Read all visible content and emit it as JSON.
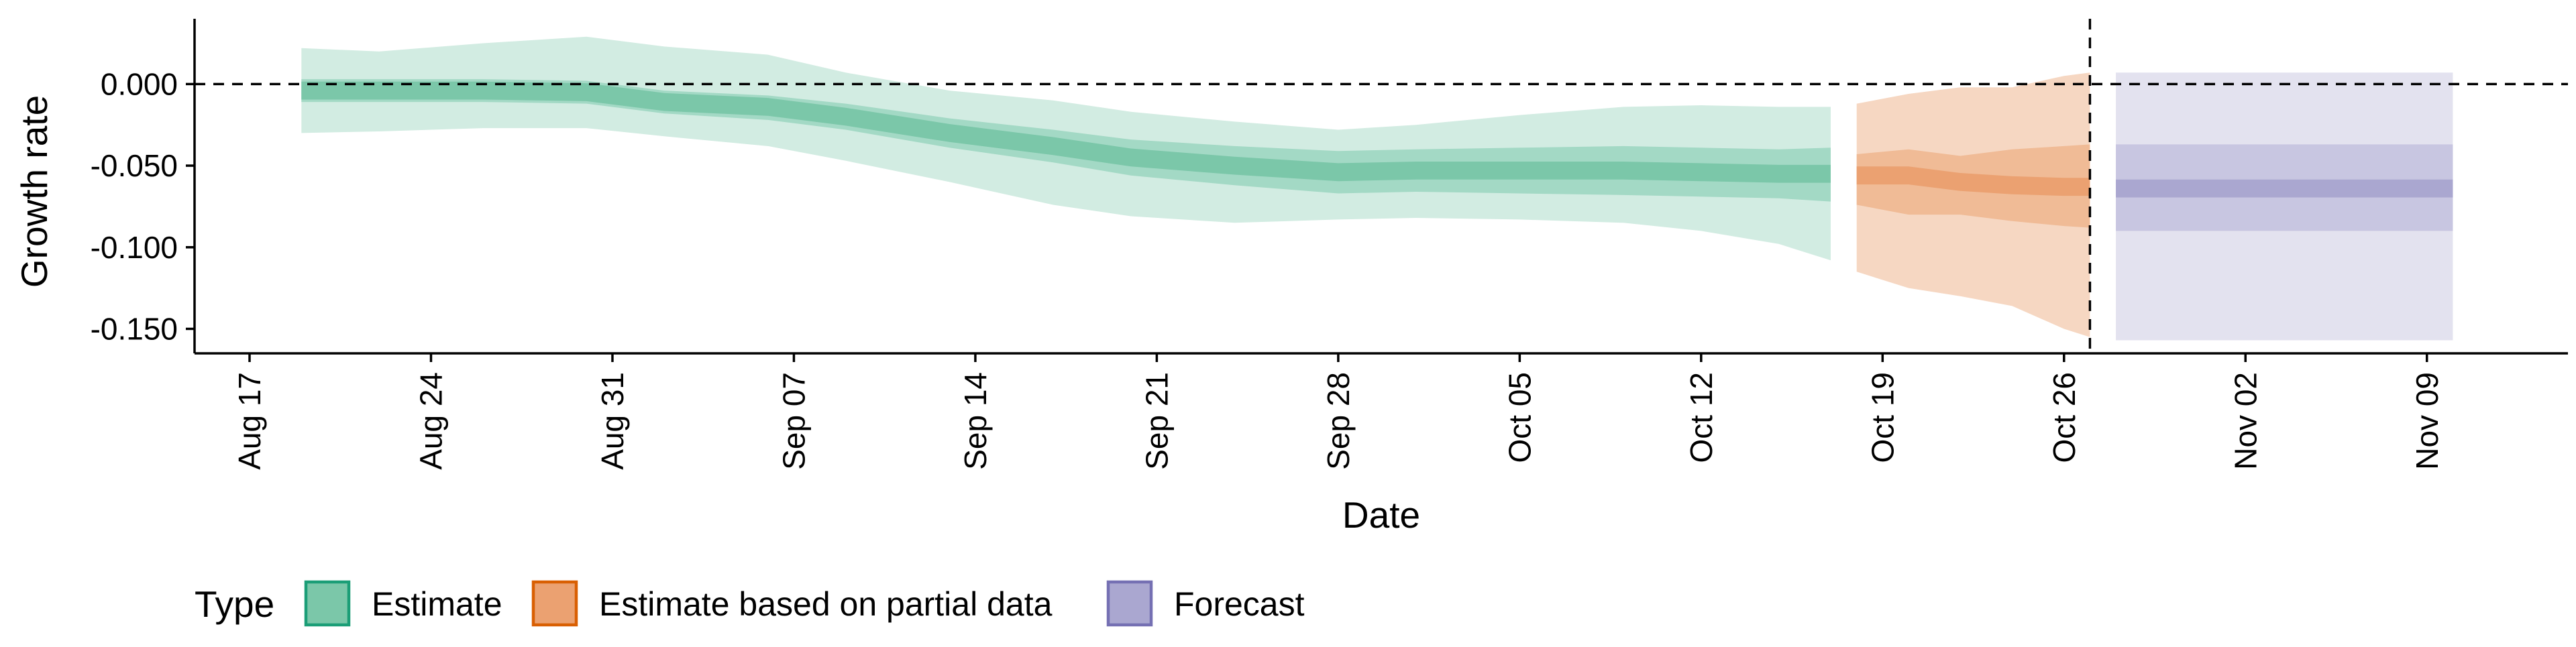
{
  "chart_data": {
    "type": "area",
    "title": "",
    "xlabel": "Date",
    "ylabel": "Growth rate",
    "x_ticks": [
      "Aug 17",
      "Aug 24",
      "Aug 31",
      "Sep 07",
      "Sep 14",
      "Sep 21",
      "Sep 28",
      "Oct 05",
      "Oct 12",
      "Oct 19",
      "Oct 26",
      "Nov 02",
      "Nov 09"
    ],
    "y_ticks": [
      "0.000",
      "-0.050",
      "-0.100",
      "-0.150"
    ],
    "ylim": [
      -0.165,
      0.04
    ],
    "grid": false,
    "reference_line_y": 0.0,
    "forecast_start_line": "Oct 27",
    "legend": {
      "title": "Type",
      "position": "bottom-left",
      "entries": [
        {
          "label": "Estimate",
          "fill": "#7bc7a9",
          "stroke": "#1b9e77"
        },
        {
          "label": "Estimate based on partial data",
          "fill": "#eba171",
          "stroke": "#d95f02"
        },
        {
          "label": "Forecast",
          "fill": "#aaa7d0",
          "stroke": "#7570b3"
        }
      ]
    },
    "series": [
      {
        "name": "Estimate",
        "colors": {
          "outer": "#d2ece2",
          "inner": "#a3d9c5",
          "center": "#7bc7a9"
        },
        "x": [
          "2020-08-19",
          "2020-08-22",
          "2020-08-26",
          "2020-08-30",
          "2020-09-02",
          "2020-09-06",
          "2020-09-09",
          "2020-09-13",
          "2020-09-17",
          "2020-09-20",
          "2020-09-24",
          "2020-09-28",
          "2020-10-01",
          "2020-10-05",
          "2020-10-09",
          "2020-10-12",
          "2020-10-15",
          "2020-10-17"
        ],
        "median": [
          -0.004,
          -0.004,
          -0.004,
          -0.005,
          -0.011,
          -0.014,
          -0.02,
          -0.03,
          -0.038,
          -0.045,
          -0.05,
          -0.054,
          -0.053,
          -0.053,
          -0.053,
          -0.054,
          -0.055,
          -0.055
        ],
        "lower_50": [
          -0.011,
          -0.011,
          -0.011,
          -0.012,
          -0.018,
          -0.022,
          -0.028,
          -0.039,
          -0.048,
          -0.056,
          -0.062,
          -0.067,
          -0.066,
          -0.067,
          -0.068,
          -0.069,
          -0.07,
          -0.072
        ],
        "upper_50": [
          0.003,
          0.003,
          0.003,
          0.002,
          -0.004,
          -0.007,
          -0.012,
          -0.021,
          -0.028,
          -0.034,
          -0.038,
          -0.041,
          -0.04,
          -0.039,
          -0.038,
          -0.039,
          -0.04,
          -0.039
        ],
        "lower_90": [
          -0.03,
          -0.029,
          -0.027,
          -0.027,
          -0.032,
          -0.038,
          -0.047,
          -0.06,
          -0.074,
          -0.081,
          -0.085,
          -0.083,
          -0.082,
          -0.083,
          -0.085,
          -0.09,
          -0.098,
          -0.108
        ],
        "upper_90": [
          0.022,
          0.02,
          0.025,
          0.029,
          0.023,
          0.018,
          0.007,
          -0.004,
          -0.01,
          -0.017,
          -0.023,
          -0.028,
          -0.025,
          -0.019,
          -0.014,
          -0.013,
          -0.014,
          -0.014
        ]
      },
      {
        "name": "Estimate based on partial data",
        "colors": {
          "outer": "#f6d7c2",
          "inner": "#f0bb96",
          "center": "#eba171"
        },
        "x": [
          "2020-10-18",
          "2020-10-20",
          "2020-10-22",
          "2020-10-24",
          "2020-10-26",
          "2020-10-27"
        ],
        "median": [
          -0.056,
          -0.056,
          -0.06,
          -0.062,
          -0.063,
          -0.063
        ],
        "lower_50": [
          -0.074,
          -0.08,
          -0.08,
          -0.084,
          -0.087,
          -0.088
        ],
        "upper_50": [
          -0.043,
          -0.04,
          -0.044,
          -0.04,
          -0.038,
          -0.037
        ],
        "lower_90": [
          -0.115,
          -0.125,
          -0.13,
          -0.136,
          -0.15,
          -0.155
        ],
        "upper_90": [
          -0.012,
          -0.006,
          -0.002,
          -0.002,
          0.005,
          0.007
        ]
      },
      {
        "name": "Forecast",
        "colors": {
          "outer": "#e3e2ef",
          "inner": "#c8c6e1",
          "center": "#aaa7d0"
        },
        "x": [
          "2020-10-28",
          "2020-11-10"
        ],
        "median": [
          -0.064,
          -0.064
        ],
        "lower_50": [
          -0.09,
          -0.09
        ],
        "upper_50": [
          -0.037,
          -0.037
        ],
        "lower_90": [
          -0.157,
          -0.157
        ],
        "upper_90": [
          0.007,
          0.007
        ]
      }
    ]
  }
}
